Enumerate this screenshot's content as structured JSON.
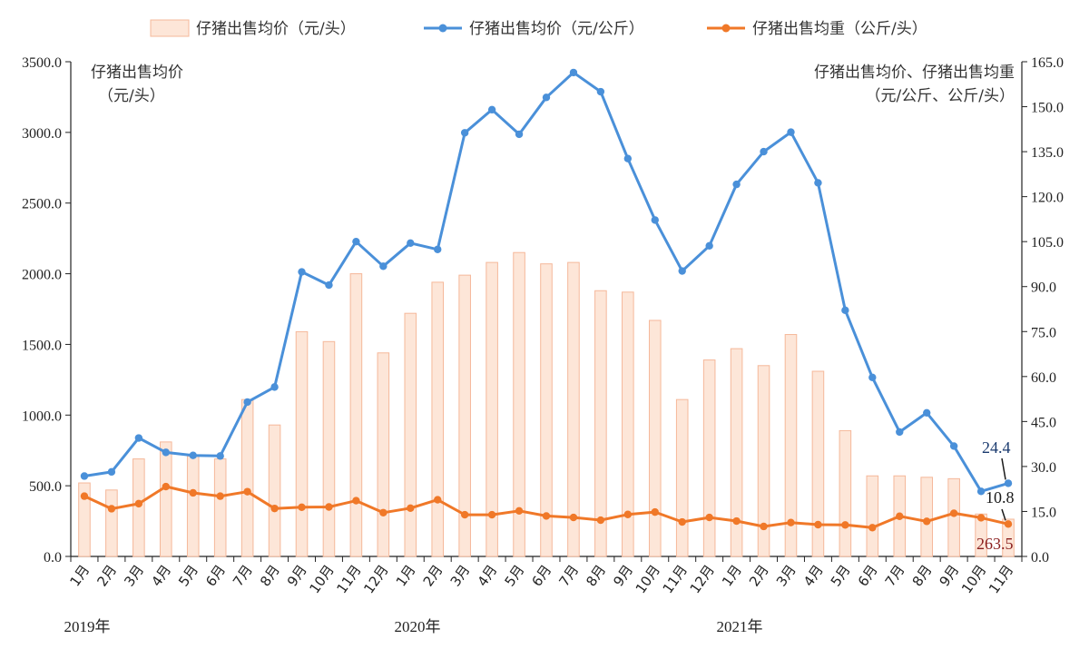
{
  "chart_data": {
    "type": "bar+line",
    "legend": [
      {
        "label": "仔猪出售均价（元/头）",
        "kind": "bar",
        "color": "#f5b89a"
      },
      {
        "label": "仔猪出售均价（元/公斤）",
        "kind": "line",
        "color": "#4a90d9"
      },
      {
        "label": "仔猪出售均重（公斤/头）",
        "kind": "line",
        "color": "#f07828"
      }
    ],
    "left_axis_title": [
      "仔猪出售均价",
      "（元/头）"
    ],
    "right_axis_title": [
      "仔猪出售均价、仔猪出售均重",
      "（元/公斤、公斤/头）"
    ],
    "left_ticks": [
      "0.0",
      "500.0",
      "1000.0",
      "1500.0",
      "2000.0",
      "2500.0",
      "3000.0",
      "3500.0"
    ],
    "right_ticks": [
      "0.0",
      "15.0",
      "30.0",
      "45.0",
      "60.0",
      "75.0",
      "90.0",
      "105.0",
      "120.0",
      "135.0",
      "150.0",
      "165.0"
    ],
    "ylim_left": [
      0,
      3500
    ],
    "ylim_right": [
      0,
      165
    ],
    "categories": [
      "1月",
      "2月",
      "3月",
      "4月",
      "5月",
      "6月",
      "7月",
      "8月",
      "9月",
      "10月",
      "11月",
      "12月",
      "1月",
      "2月",
      "3月",
      "4月",
      "5月",
      "6月",
      "7月",
      "8月",
      "9月",
      "10月",
      "11月",
      "12月",
      "1月",
      "2月",
      "3月",
      "4月",
      "5月",
      "6月",
      "7月",
      "8月",
      "9月",
      "10月",
      "11月"
    ],
    "years": [
      {
        "label": "2019年",
        "start_index": 0
      },
      {
        "label": "2020年",
        "start_index": 12
      },
      {
        "label": "2021年",
        "start_index": 24
      }
    ],
    "series": [
      {
        "name": "仔猪出售均价（元/头）",
        "axis": "left",
        "type": "bar",
        "values": [
          520,
          470,
          690,
          810,
          710,
          690,
          1110,
          930,
          1590,
          1520,
          2000,
          1440,
          1720,
          1940,
          1990,
          2080,
          2150,
          2070,
          2080,
          1880,
          1870,
          1670,
          1110,
          1390,
          1470,
          1350,
          1570,
          1310,
          890,
          570,
          570,
          560,
          550,
          300,
          263.5
        ]
      },
      {
        "name": "仔猪出售均价（元/公斤）",
        "axis": "right",
        "type": "line",
        "values": [
          26.8,
          28.2,
          39.5,
          34.7,
          33.7,
          33.5,
          51.5,
          56.5,
          94.9,
          90.5,
          105.0,
          96.8,
          104.5,
          102.4,
          141.3,
          149.0,
          140.8,
          153.1,
          161.4,
          155.0,
          132.7,
          112.2,
          95.2,
          103.6,
          124.1,
          135.0,
          141.5,
          124.6,
          82.1,
          59.7,
          41.5,
          47.9,
          36.8,
          21.7,
          24.4
        ]
      },
      {
        "name": "仔猪出售均重（公斤/头）",
        "axis": "right",
        "type": "line",
        "values": [
          20.1,
          15.9,
          17.6,
          23.3,
          21.2,
          20.1,
          21.6,
          16.0,
          16.4,
          16.5,
          18.6,
          14.6,
          16.1,
          18.9,
          13.9,
          13.9,
          15.2,
          13.5,
          13.0,
          12.1,
          14.0,
          14.8,
          11.5,
          13.0,
          11.8,
          10.0,
          11.3,
          10.6,
          10.5,
          9.6,
          13.4,
          11.7,
          14.4,
          12.9,
          10.8
        ]
      }
    ],
    "annotations": [
      {
        "text": "24.4",
        "series": 1,
        "index": 34,
        "color": "#1a3a6e"
      },
      {
        "text": "10.8",
        "series": 2,
        "index": 34,
        "color": "#1a1a1a"
      },
      {
        "text": "263.5",
        "series": 0,
        "index": 34,
        "color": "#8b2020"
      }
    ],
    "grid": false
  }
}
